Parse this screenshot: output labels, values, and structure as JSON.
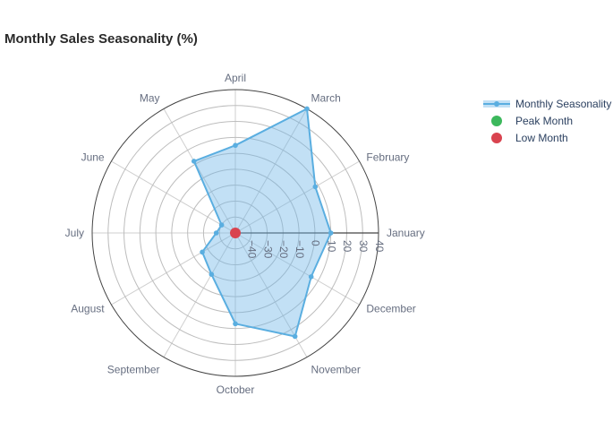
{
  "chart_data": {
    "type": "polar",
    "title": "Monthly Sales Seasonality (%)",
    "categories": [
      "January",
      "February",
      "March",
      "April",
      "May",
      "June",
      "July",
      "August",
      "September",
      "October",
      "November",
      "December"
    ],
    "series": [
      {
        "name": "Monthly Seasonality",
        "values": [
          10,
          8,
          40,
          5,
          2,
          -40,
          -38,
          -26,
          -20,
          7,
          25,
          5
        ],
        "color": "#5aaee0",
        "fill": "rgba(110,180,230,0.42)"
      }
    ],
    "markers": [
      {
        "name": "Peak Month",
        "color": "#3cb85c"
      },
      {
        "name": "Low Month",
        "category": "June",
        "value": -50,
        "color": "#d9434f"
      }
    ],
    "radial_range": [
      -50,
      40
    ],
    "radial_ticks": [
      "−40",
      "−30",
      "−20",
      "−10",
      "0",
      "10",
      "20",
      "30",
      "40"
    ],
    "radial_tick_values": [
      -40,
      -30,
      -20,
      -10,
      0,
      10,
      20,
      30,
      40
    ],
    "grid": true,
    "legend_position": "top-right"
  }
}
